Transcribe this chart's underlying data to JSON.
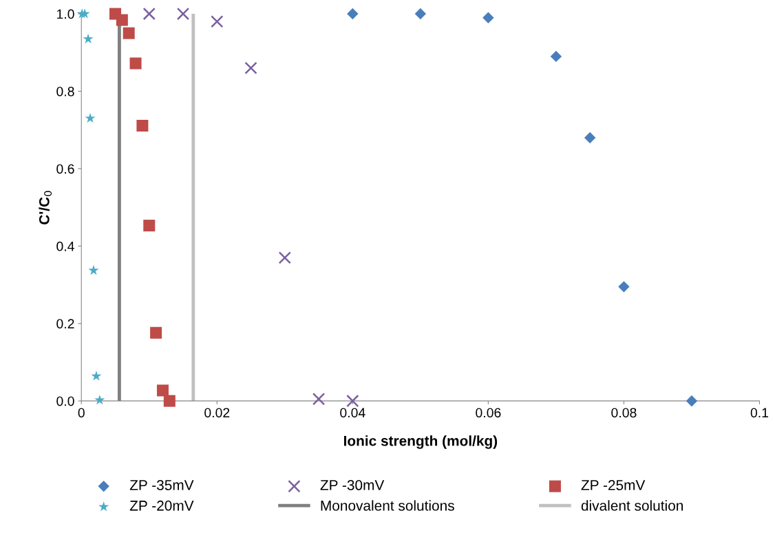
{
  "chart_data": {
    "type": "scatter",
    "xlabel": "Ionic strength (mol/kg)",
    "ylabel": "C'/C$_{0}$",
    "xlim": [
      0,
      0.1
    ],
    "xticks": [
      0,
      0.02,
      0.04,
      0.06,
      0.08,
      0.1
    ],
    "ylim": [
      0,
      1.0
    ],
    "yticks": [
      {
        "value": 0,
        "label": "0.0"
      },
      0.2,
      0.4,
      0.6,
      0.8,
      {
        "value": 1.0,
        "label": "1.0"
      }
    ],
    "grid": false,
    "legend": "bottom",
    "series": [
      {
        "name": "ZP -35mV",
        "color": "#4a7ebb",
        "marker": "diamond",
        "x": [
          0.04,
          0.05,
          0.06,
          0.07,
          0.075,
          0.08,
          0.09
        ],
        "values": [
          1.0,
          1.0,
          0.99,
          0.89,
          0.68,
          0.295,
          0.0
        ]
      },
      {
        "name": "ZP -30mV",
        "color": "#7b5fa0",
        "marker": "cross",
        "x": [
          0.01,
          0.015,
          0.02,
          0.025,
          0.03,
          0.035,
          0.04
        ],
        "values": [
          1.0,
          1.0,
          0.98,
          0.86,
          0.37,
          0.005,
          0.0
        ]
      },
      {
        "name": "ZP -25mV",
        "color": "#be4b48",
        "marker": "square",
        "x": [
          0.005,
          0.006,
          0.007,
          0.008,
          0.009,
          0.01,
          0.011,
          0.012,
          0.013
        ],
        "values": [
          1.0,
          0.984,
          0.95,
          0.872,
          0.711,
          0.453,
          0.176,
          0.027,
          0.0
        ]
      },
      {
        "name": "ZP -20mV",
        "color": "#4bacc6",
        "marker": "star",
        "x": [
          0.0001,
          0.0005,
          0.001,
          0.0013,
          0.0018,
          0.0022,
          0.0027
        ],
        "values": [
          1.0,
          1.0,
          0.935,
          0.73,
          0.337,
          0.064,
          0.002
        ]
      }
    ],
    "ref_lines": [
      {
        "axis": "x",
        "value": 0.0056,
        "label": "Monovalent solutions",
        "color": "#808080"
      },
      {
        "axis": "x",
        "value": 0.0165,
        "label": "divalent solution",
        "color": "#c0c0c0"
      }
    ]
  }
}
